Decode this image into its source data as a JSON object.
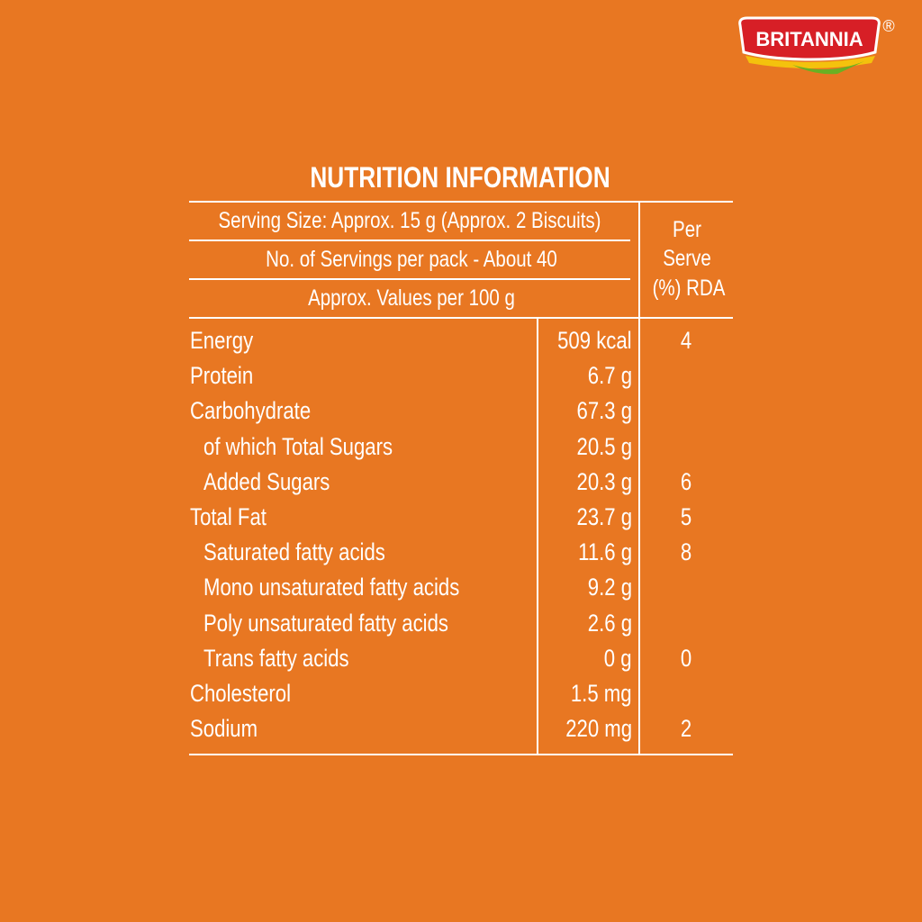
{
  "brand": {
    "name": "BRITANNIA",
    "mark": "®"
  },
  "title": "NUTRITION INFORMATION",
  "header": {
    "serving_size": "Serving Size: Approx. 15 g (Approx. 2 Biscuits)",
    "servings": "No. of Servings per pack - About 40",
    "basis": "Approx. Values per 100 g",
    "rda_column": [
      "Per",
      "Serve",
      "(%) RDA"
    ]
  },
  "table": {
    "rows": [
      {
        "name": "Energy",
        "value": "509 kcal",
        "rda": "4"
      },
      {
        "name": "Protein",
        "value": "6.7 g"
      },
      {
        "name": "Carbohydrate",
        "value": "67.3 g"
      },
      {
        "name": "of which Total Sugars",
        "value": "20.5 g"
      },
      {
        "name": "Added Sugars",
        "value": "20.3 g",
        "rda": "6"
      },
      {
        "name": "Total Fat",
        "value": "23.7 g",
        "rda": "5"
      },
      {
        "name": "Saturated fatty acids",
        "value": "11.6 g",
        "rda": "8"
      },
      {
        "name": "Mono unsaturated fatty acids",
        "value": "9.2 g"
      },
      {
        "name": "Poly unsaturated fatty acids",
        "value": "2.6 g"
      },
      {
        "name": "Trans fatty acids",
        "value": "0 g",
        "rda": "0"
      },
      {
        "name": "Cholesterol",
        "value": "1.5 mg"
      },
      {
        "name": "Sodium",
        "value": "220 mg",
        "rda": "2"
      }
    ]
  }
}
